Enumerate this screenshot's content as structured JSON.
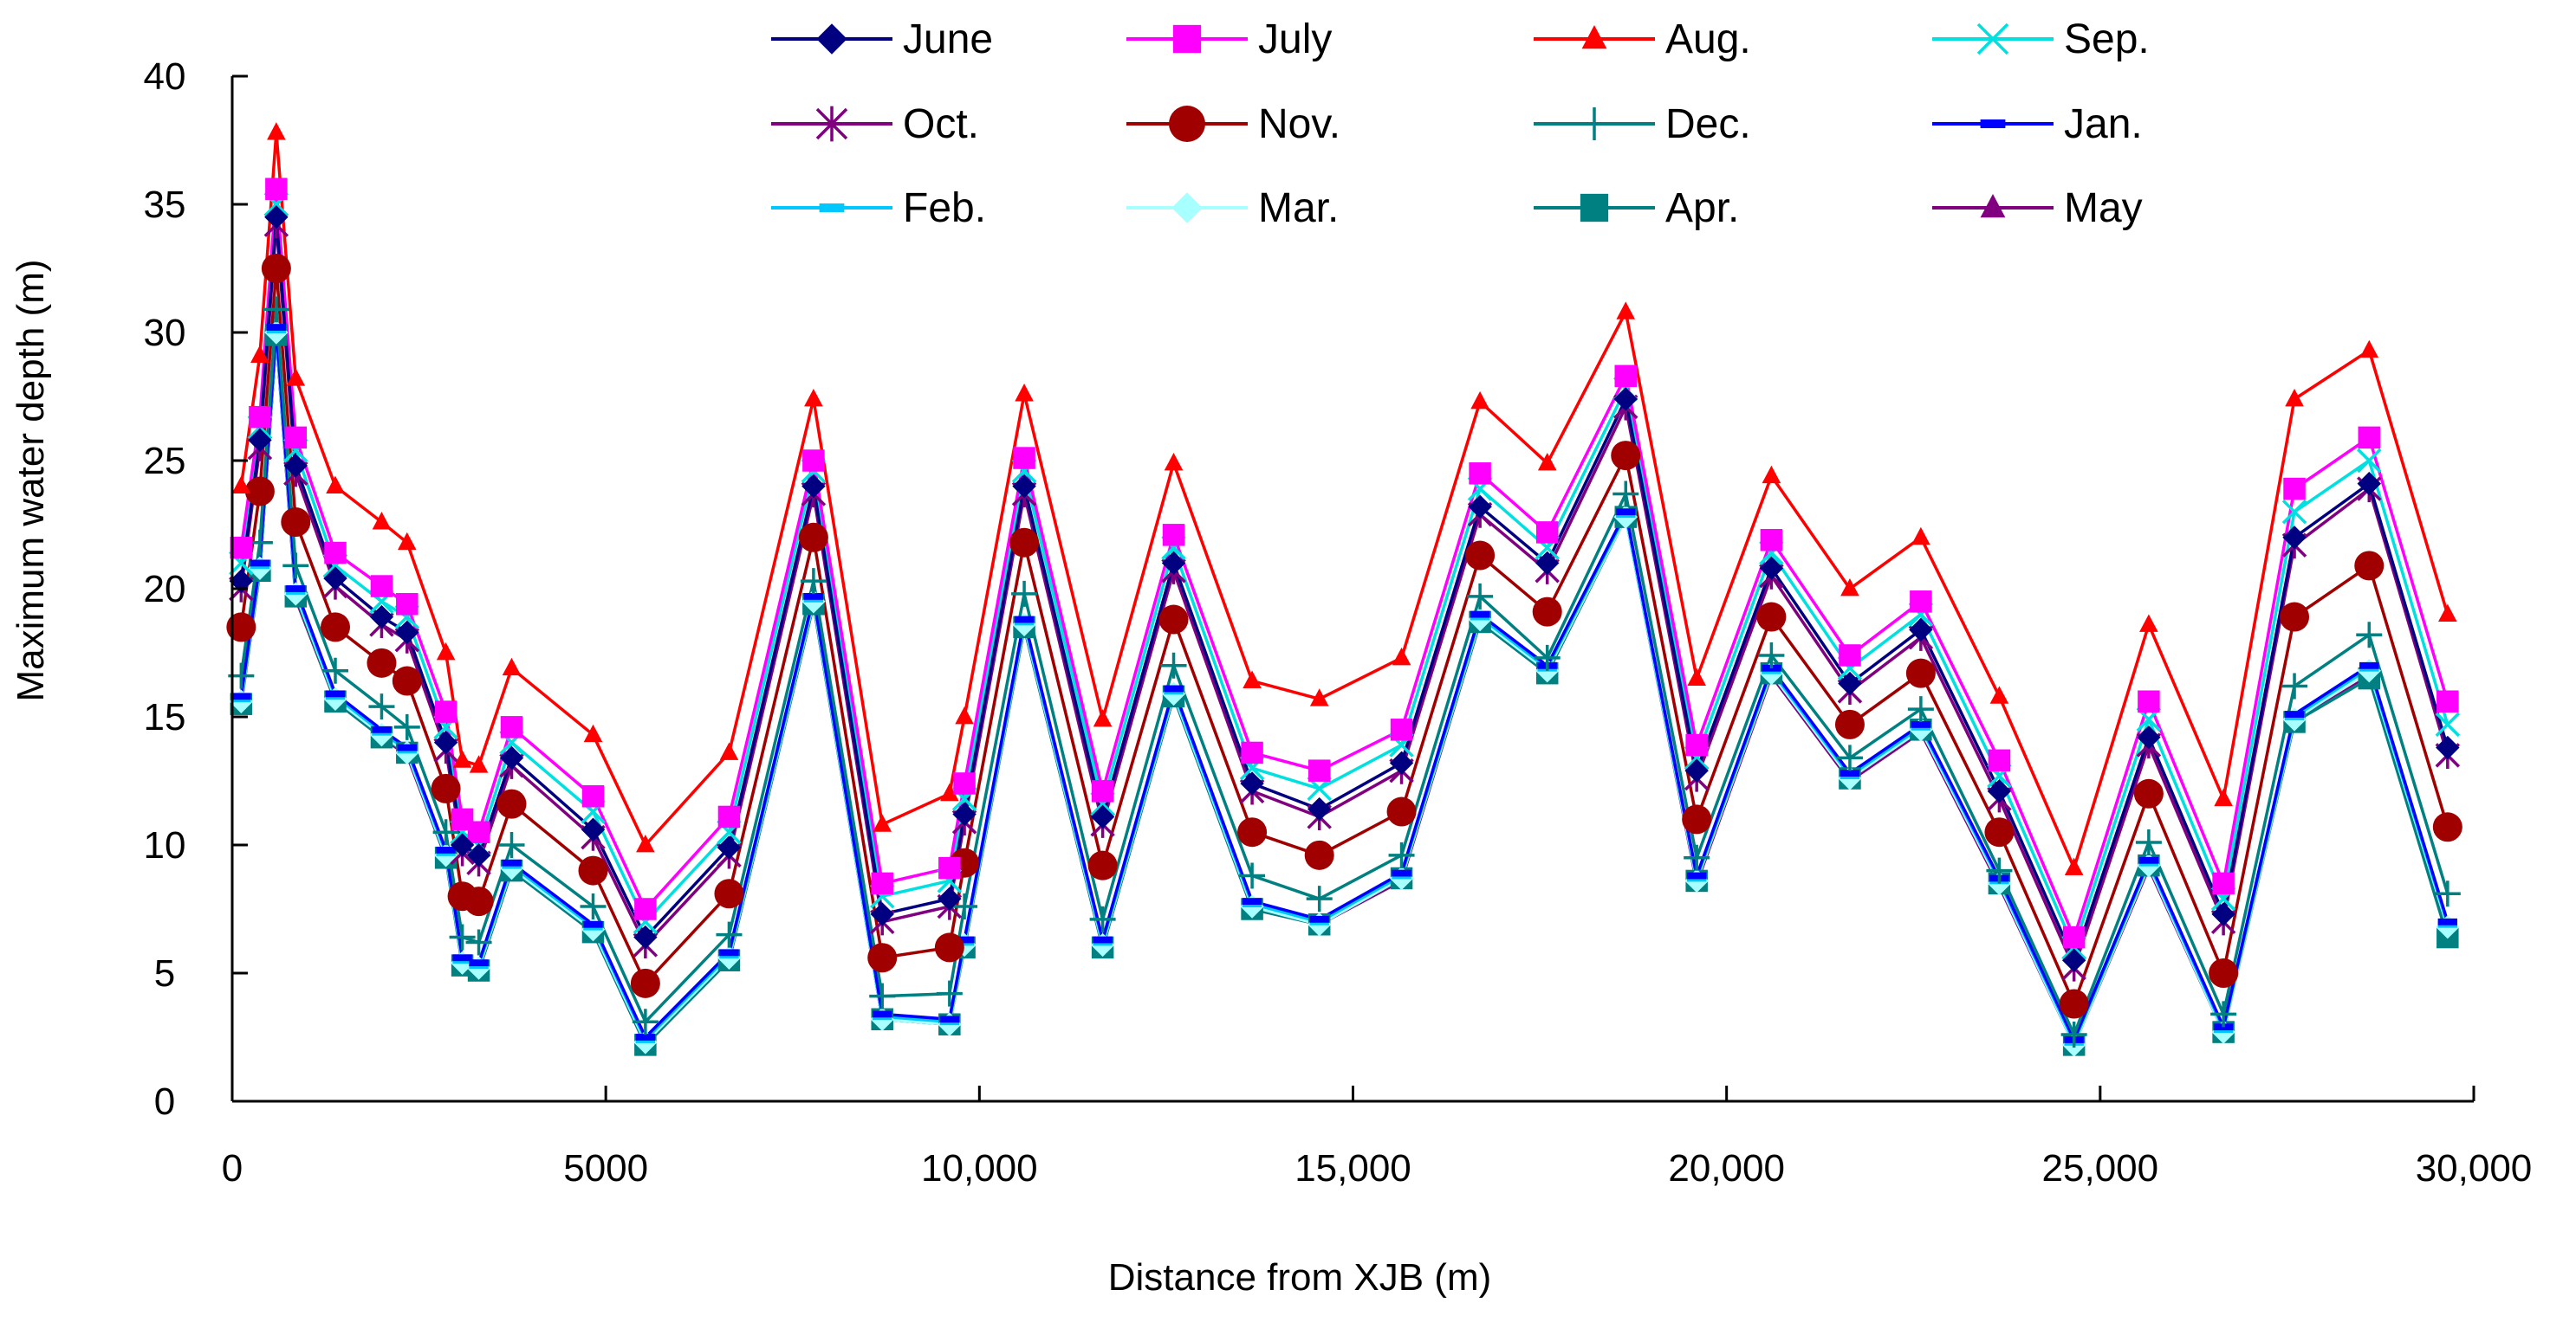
{
  "chart_data": {
    "type": "line",
    "title": "",
    "xlabel": "Distance from XJB (m)",
    "ylabel": "Maximum water depth (m)",
    "xlim": [
      0,
      30000
    ],
    "ylim": [
      0,
      40
    ],
    "grid": false,
    "legend_position": "top",
    "x_ticks": [
      {
        "value": 0,
        "label": "0"
      },
      {
        "value": 5000,
        "label": "5000"
      },
      {
        "value": 10000,
        "label": "10,000"
      },
      {
        "value": 15000,
        "label": "15,000"
      },
      {
        "value": 20000,
        "label": "20,000"
      },
      {
        "value": 25000,
        "label": "25,000"
      },
      {
        "value": 30000,
        "label": "30,000"
      }
    ],
    "y_ticks": [
      {
        "value": 0,
        "label": "0"
      },
      {
        "value": 5,
        "label": "5"
      },
      {
        "value": 10,
        "label": "10"
      },
      {
        "value": 15,
        "label": "15"
      },
      {
        "value": 20,
        "label": "20"
      },
      {
        "value": 25,
        "label": "25"
      },
      {
        "value": 30,
        "label": "30"
      },
      {
        "value": 35,
        "label": "35"
      },
      {
        "value": 40,
        "label": "40"
      }
    ],
    "x": [
      120,
      370,
      590,
      850,
      1380,
      2000,
      2340,
      2860,
      3080,
      3300,
      3740,
      4830,
      5530,
      6650,
      7780,
      8700,
      9600,
      9800,
      10600,
      11650,
      12600,
      13650,
      14550,
      15650,
      16700,
      17600,
      18650,
      19600,
      20600,
      21650,
      22600,
      23650,
      24650,
      25650,
      26650,
      27600,
      28600,
      29650
    ],
    "series": [
      {
        "name": "June",
        "color": "#000080",
        "marker": "diamond",
        "values": [
          20.3,
          25.8,
          34.5,
          24.8,
          20.4,
          18.9,
          18.3,
          14.0,
          10.0,
          9.6,
          13.4,
          10.6,
          6.4,
          9.9,
          24.0,
          7.3,
          7.9,
          11.2,
          24.0,
          11.1,
          21.0,
          12.4,
          11.4,
          13.2,
          23.2,
          21.0,
          27.4,
          12.9,
          20.8,
          16.3,
          18.4,
          12.1,
          5.5,
          14.2,
          7.3,
          22.0,
          24.1,
          13.8
        ]
      },
      {
        "name": "July",
        "color": "#ff00ff",
        "marker": "square",
        "values": [
          21.6,
          26.7,
          35.6,
          25.9,
          21.4,
          20.1,
          19.4,
          15.2,
          11.0,
          10.5,
          14.6,
          11.9,
          7.5,
          11.1,
          25.0,
          8.5,
          9.1,
          12.4,
          25.1,
          12.1,
          22.1,
          13.6,
          12.9,
          14.5,
          24.5,
          22.2,
          28.3,
          13.9,
          21.9,
          17.4,
          19.5,
          13.3,
          6.4,
          15.6,
          8.5,
          23.9,
          25.9,
          15.6
        ]
      },
      {
        "name": "Aug.",
        "color": "#ff0000",
        "marker": "triangle",
        "values": [
          24.0,
          29.1,
          37.8,
          28.2,
          24.0,
          22.6,
          21.8,
          17.5,
          13.3,
          13.1,
          16.9,
          14.3,
          10.0,
          13.6,
          27.4,
          10.8,
          12.0,
          15.0,
          27.6,
          14.9,
          24.9,
          16.4,
          15.7,
          17.3,
          27.3,
          24.9,
          30.8,
          16.5,
          24.4,
          20.0,
          22.0,
          15.8,
          9.1,
          18.6,
          11.8,
          27.4,
          29.3,
          19.0
        ]
      },
      {
        "name": "Sep.",
        "color": "#00e0e0",
        "marker": "x",
        "values": [
          21.0,
          26.3,
          35.0,
          25.4,
          20.9,
          19.5,
          18.9,
          14.6,
          10.5,
          10.0,
          14.0,
          11.3,
          7.0,
          10.5,
          24.6,
          8.0,
          8.6,
          11.8,
          24.6,
          11.6,
          21.6,
          13.0,
          12.2,
          13.9,
          23.9,
          21.6,
          27.8,
          13.4,
          21.4,
          16.9,
          19.0,
          12.7,
          6.0,
          14.9,
          7.9,
          23.0,
          25.0,
          14.7
        ]
      },
      {
        "name": "Oct.",
        "color": "#800080",
        "marker": "star",
        "values": [
          20.0,
          25.5,
          34.2,
          24.5,
          20.1,
          18.6,
          18.0,
          13.7,
          9.7,
          9.3,
          13.1,
          10.3,
          6.1,
          9.6,
          23.7,
          7.0,
          7.6,
          10.9,
          23.7,
          10.8,
          20.7,
          12.1,
          11.1,
          12.9,
          22.9,
          20.7,
          27.1,
          12.6,
          20.5,
          16.0,
          18.1,
          11.8,
          5.2,
          13.9,
          7.0,
          21.7,
          23.9,
          13.5
        ]
      },
      {
        "name": "Nov.",
        "color": "#a00000",
        "marker": "circle",
        "values": [
          18.5,
          23.8,
          32.5,
          22.6,
          18.5,
          17.1,
          16.4,
          12.2,
          8.0,
          7.8,
          11.6,
          9.0,
          4.6,
          8.1,
          22.0,
          5.6,
          6.0,
          9.3,
          21.8,
          9.2,
          18.8,
          10.5,
          9.6,
          11.3,
          21.3,
          19.1,
          25.2,
          11.0,
          18.9,
          14.7,
          16.7,
          10.5,
          3.8,
          12.0,
          5.0,
          18.9,
          20.9,
          10.7
        ]
      },
      {
        "name": "Dec.",
        "color": "#008080",
        "marker": "plus",
        "values": [
          16.6,
          21.8,
          30.9,
          20.9,
          16.8,
          15.4,
          14.6,
          10.5,
          6.4,
          6.2,
          10.0,
          7.6,
          3.1,
          6.5,
          20.3,
          4.1,
          4.2,
          7.6,
          19.8,
          7.1,
          17.0,
          8.8,
          7.9,
          9.6,
          19.7,
          17.3,
          23.7,
          9.5,
          17.4,
          13.4,
          15.3,
          9.0,
          2.6,
          10.1,
          3.4,
          16.2,
          18.2,
          8.1
        ]
      },
      {
        "name": "Jan.",
        "color": "#0000ff",
        "marker": "dash",
        "values": [
          15.8,
          21.0,
          30.2,
          20.0,
          15.9,
          14.5,
          13.8,
          9.8,
          5.6,
          5.4,
          9.3,
          6.9,
          2.5,
          5.8,
          19.7,
          3.4,
          3.2,
          6.3,
          18.8,
          6.3,
          16.1,
          7.8,
          7.1,
          8.9,
          19.0,
          17.0,
          23.0,
          8.8,
          16.9,
          12.8,
          14.7,
          8.7,
          2.4,
          9.4,
          2.9,
          15.1,
          17.0,
          7.0
        ]
      },
      {
        "name": "Feb.",
        "color": "#00c8ff",
        "marker": "dash",
        "values": [
          15.7,
          20.9,
          30.1,
          19.9,
          15.8,
          14.4,
          13.7,
          9.7,
          5.5,
          5.3,
          9.2,
          6.8,
          2.4,
          5.7,
          19.6,
          3.3,
          3.1,
          6.2,
          18.7,
          6.2,
          16.0,
          7.7,
          7.0,
          8.8,
          18.9,
          16.9,
          22.9,
          8.7,
          16.8,
          12.7,
          14.6,
          8.6,
          2.3,
          9.3,
          2.8,
          15.0,
          16.9,
          6.9
        ]
      },
      {
        "name": "Mar.",
        "color": "#a8ffff",
        "marker": "diamond",
        "values": [
          15.6,
          20.8,
          30.0,
          19.8,
          15.7,
          14.3,
          13.6,
          9.6,
          5.4,
          5.2,
          9.1,
          6.7,
          2.3,
          5.6,
          19.5,
          3.2,
          3.0,
          6.1,
          18.6,
          6.1,
          15.9,
          7.6,
          6.9,
          8.7,
          18.8,
          16.8,
          22.8,
          8.6,
          16.7,
          12.6,
          14.5,
          8.5,
          2.2,
          9.2,
          2.7,
          14.9,
          16.8,
          6.8
        ]
      },
      {
        "name": "Apr.",
        "color": "#008080",
        "marker": "square",
        "values": [
          15.5,
          20.7,
          29.9,
          19.7,
          15.6,
          14.2,
          13.6,
          9.5,
          5.3,
          5.1,
          9.0,
          6.6,
          2.2,
          5.5,
          19.4,
          3.2,
          3.0,
          6.0,
          18.5,
          6.0,
          15.8,
          7.5,
          6.9,
          8.7,
          18.7,
          16.7,
          22.8,
          8.6,
          16.7,
          12.6,
          14.5,
          8.5,
          2.2,
          9.2,
          2.7,
          14.8,
          16.5,
          6.4
        ]
      },
      {
        "name": "May",
        "color": "#800080",
        "marker": "triangle",
        "values": [
          15.5,
          20.7,
          29.9,
          19.6,
          15.6,
          14.2,
          13.5,
          9.5,
          5.3,
          5.1,
          9.0,
          6.6,
          2.2,
          5.5,
          19.4,
          3.2,
          3.0,
          6.0,
          18.5,
          6.0,
          15.8,
          7.5,
          6.9,
          8.6,
          18.7,
          16.7,
          22.8,
          8.5,
          16.6,
          12.5,
          14.4,
          8.4,
          2.2,
          9.1,
          2.7,
          14.8,
          16.6,
          6.5
        ]
      }
    ]
  }
}
